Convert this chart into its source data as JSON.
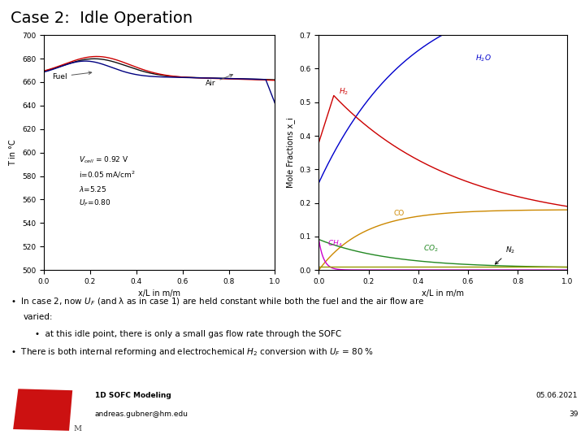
{
  "title": "Case 2:  Idle Operation",
  "title_fontsize": 14,
  "bg_color": "#ffffff",
  "left_plot": {
    "ylabel": "T in °C",
    "xlabel": "x/L in m/m",
    "ylim": [
      500,
      700
    ],
    "yticks": [
      500,
      520,
      540,
      560,
      580,
      600,
      620,
      640,
      660,
      680,
      700
    ],
    "xlim": [
      0,
      1
    ],
    "xticks": [
      0,
      0.2,
      0.4,
      0.6,
      0.8,
      1
    ],
    "fuel_color": "#cc0000",
    "air_color": "#000080",
    "solid_color": "#111111"
  },
  "right_plot": {
    "ylabel": "Mole Fractions x_i",
    "xlabel": "x/L in m/m",
    "ylim": [
      0,
      0.7
    ],
    "yticks": [
      0,
      0.1,
      0.2,
      0.3,
      0.4,
      0.5,
      0.6,
      0.7
    ],
    "xlim": [
      0,
      1
    ],
    "xticks": [
      0,
      0.2,
      0.4,
      0.6,
      0.8,
      1
    ],
    "H2O_color": "#0000cc",
    "H2_color": "#cc0000",
    "CO_color": "#cc8800",
    "CO2_color": "#228822",
    "CH4_color": "#cc00cc",
    "N2_color": "#999900"
  },
  "footer_left1": "1D SOFC Modeling",
  "footer_left2": "andreas.gubner@hm.edu",
  "footer_right1": "05.06.2021",
  "footer_right2": "39"
}
